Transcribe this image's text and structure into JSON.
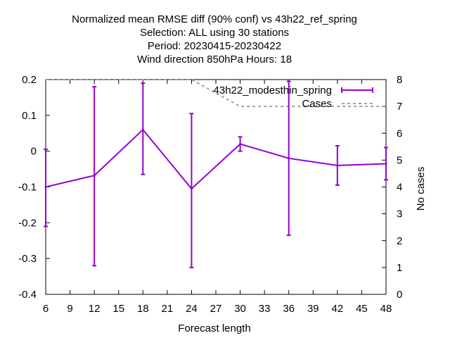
{
  "chart_data": {
    "type": "line",
    "title_lines": [
      "Normalized mean RMSE diff (90% conf) vs 43h22_ref_spring",
      "Selection: ALL using 30 stations",
      "Period: 20230415-20230422",
      "Wind direction 850hPa Hours: 18"
    ],
    "xlabel": "Forecast length",
    "ylabel": "",
    "y2label": "No cases",
    "xlim": [
      6,
      48
    ],
    "ylim": [
      -0.4,
      0.2
    ],
    "y2lim": [
      0,
      8
    ],
    "x_ticks": [
      6,
      9,
      12,
      15,
      18,
      21,
      24,
      27,
      30,
      33,
      36,
      39,
      42,
      45,
      48
    ],
    "y_ticks": [
      -0.4,
      -0.3,
      -0.2,
      -0.1,
      0,
      0.1,
      0.2
    ],
    "y_tick_labels": [
      "-0.4",
      "-0.3",
      "-0.2",
      "-0.1",
      "0",
      "0.1",
      "0.2"
    ],
    "y2_ticks": [
      0,
      1,
      2,
      3,
      4,
      5,
      6,
      7,
      8
    ],
    "legend_position": "top-right",
    "series": [
      {
        "name": "43h22_modesthin_spring",
        "color": "#9400d3",
        "style": "line-with-errorbars",
        "x": [
          6,
          12,
          18,
          24,
          30,
          36,
          42,
          48
        ],
        "y": [
          -0.1,
          -0.068,
          0.06,
          -0.105,
          0.02,
          -0.02,
          -0.04,
          -0.035
        ],
        "y_low": [
          -0.21,
          -0.32,
          -0.065,
          -0.325,
          0,
          -0.235,
          -0.095,
          -0.08
        ],
        "y_high": [
          0.005,
          0.18,
          0.19,
          0.105,
          0.04,
          0.195,
          0.015,
          0.01
        ]
      },
      {
        "name": "Cases",
        "color": "#a0a0a0",
        "style": "dashed",
        "axis": "y2",
        "x": [
          6,
          12,
          18,
          24,
          30,
          36,
          42,
          48
        ],
        "y": [
          8,
          8,
          8,
          8,
          7,
          7,
          7,
          7
        ]
      }
    ]
  }
}
